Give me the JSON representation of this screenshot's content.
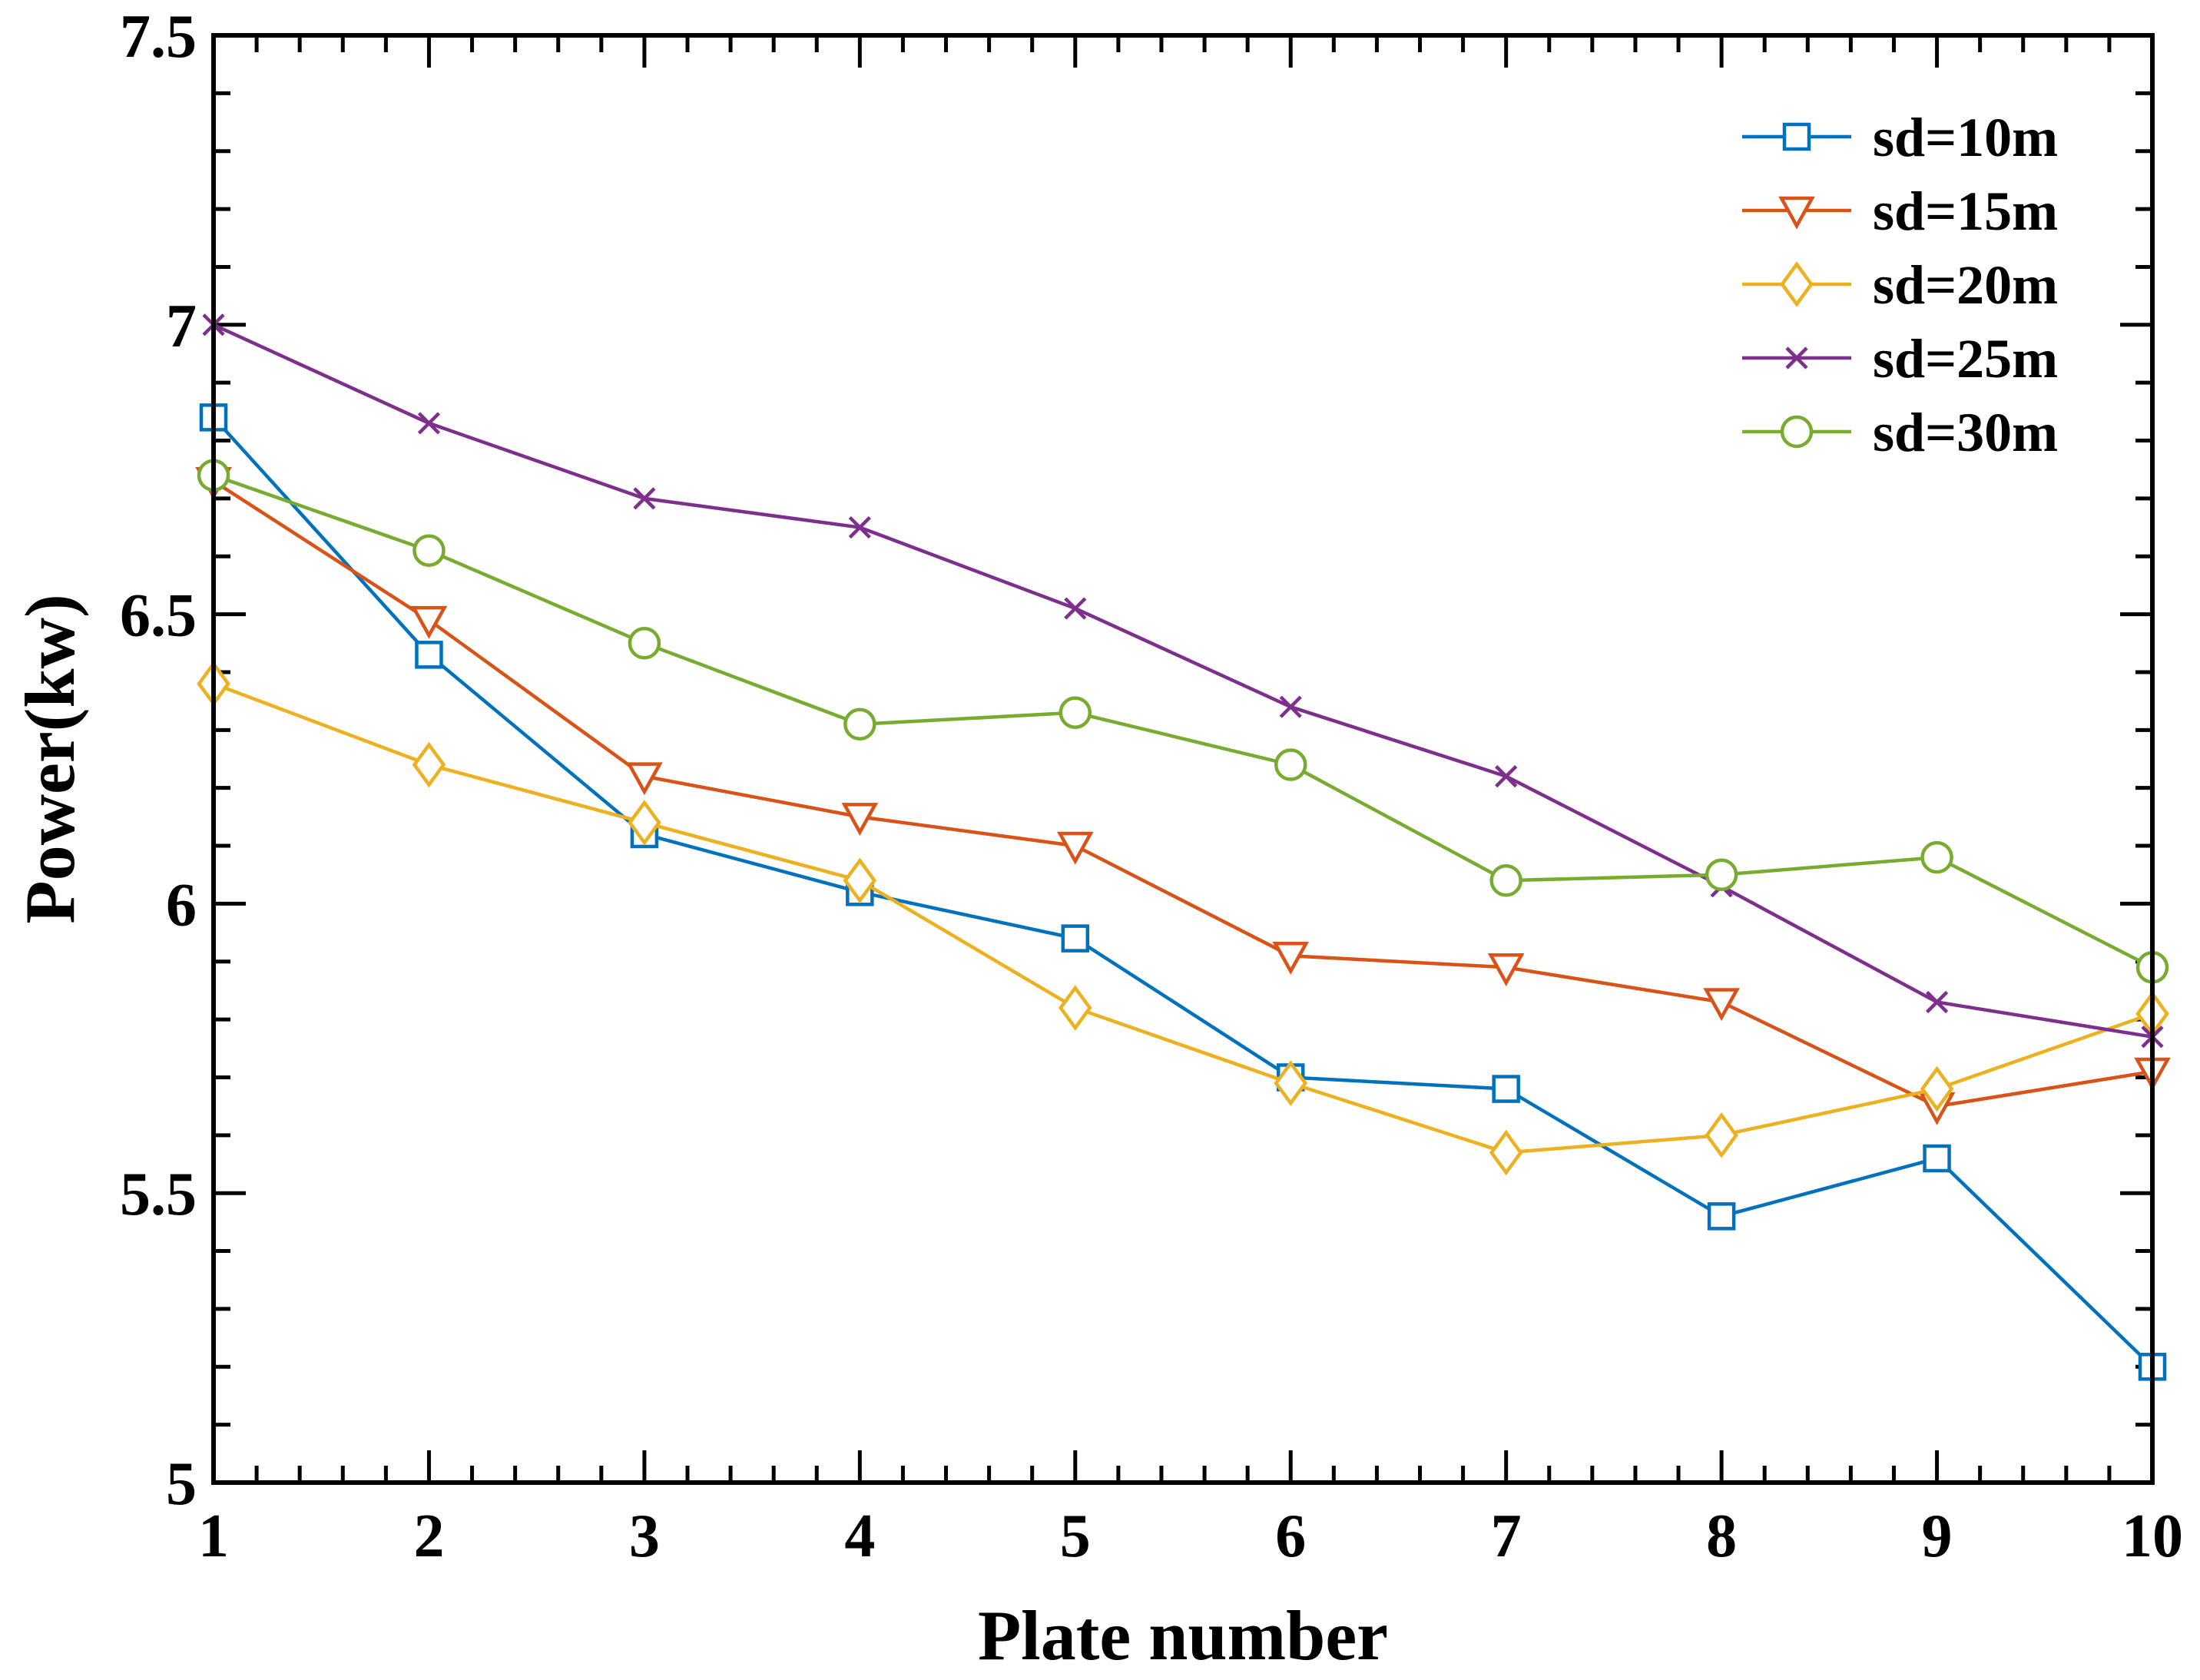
{
  "chart_data": {
    "type": "line",
    "title": "",
    "xlabel": "Plate number",
    "ylabel": "Power(kw)",
    "x": [
      1,
      2,
      3,
      4,
      5,
      6,
      7,
      8,
      9,
      10
    ],
    "xlim": [
      1,
      10
    ],
    "ylim": [
      5,
      7.5
    ],
    "x_ticks": [
      1,
      2,
      3,
      4,
      5,
      6,
      7,
      8,
      9,
      10
    ],
    "x_tick_labels": [
      "1",
      "2",
      "3",
      "4",
      "5",
      "6",
      "7",
      "8",
      "9",
      "10"
    ],
    "y_ticks": [
      5,
      5.5,
      6,
      6.5,
      7,
      7.5
    ],
    "y_tick_labels": [
      "5",
      "5.5",
      "6",
      "6.5",
      "7",
      "7.5"
    ],
    "grid": false,
    "legend_position": "top-right",
    "series": [
      {
        "name": "sd=10m",
        "color": "#0072BD",
        "marker": "square",
        "values": [
          6.84,
          6.43,
          6.12,
          6.02,
          5.94,
          5.7,
          5.68,
          5.46,
          5.56,
          5.2
        ]
      },
      {
        "name": "sd=15m",
        "color": "#D95319",
        "marker": "triangle-down",
        "values": [
          6.73,
          6.49,
          6.22,
          6.15,
          6.1,
          5.91,
          5.89,
          5.83,
          5.65,
          5.71
        ]
      },
      {
        "name": "sd=20m",
        "color": "#EDB120",
        "marker": "diamond",
        "values": [
          6.38,
          6.24,
          6.14,
          6.04,
          5.82,
          5.69,
          5.57,
          5.6,
          5.68,
          5.81
        ]
      },
      {
        "name": "sd=25m",
        "color": "#7E2F8E",
        "marker": "x",
        "values": [
          7.0,
          6.83,
          6.7,
          6.65,
          6.51,
          6.34,
          6.22,
          6.03,
          5.83,
          5.77
        ]
      },
      {
        "name": "sd=30m",
        "color": "#77AC30",
        "marker": "circle",
        "values": [
          6.74,
          6.61,
          6.45,
          6.31,
          6.33,
          6.24,
          6.04,
          6.05,
          6.08,
          5.89
        ]
      }
    ]
  }
}
